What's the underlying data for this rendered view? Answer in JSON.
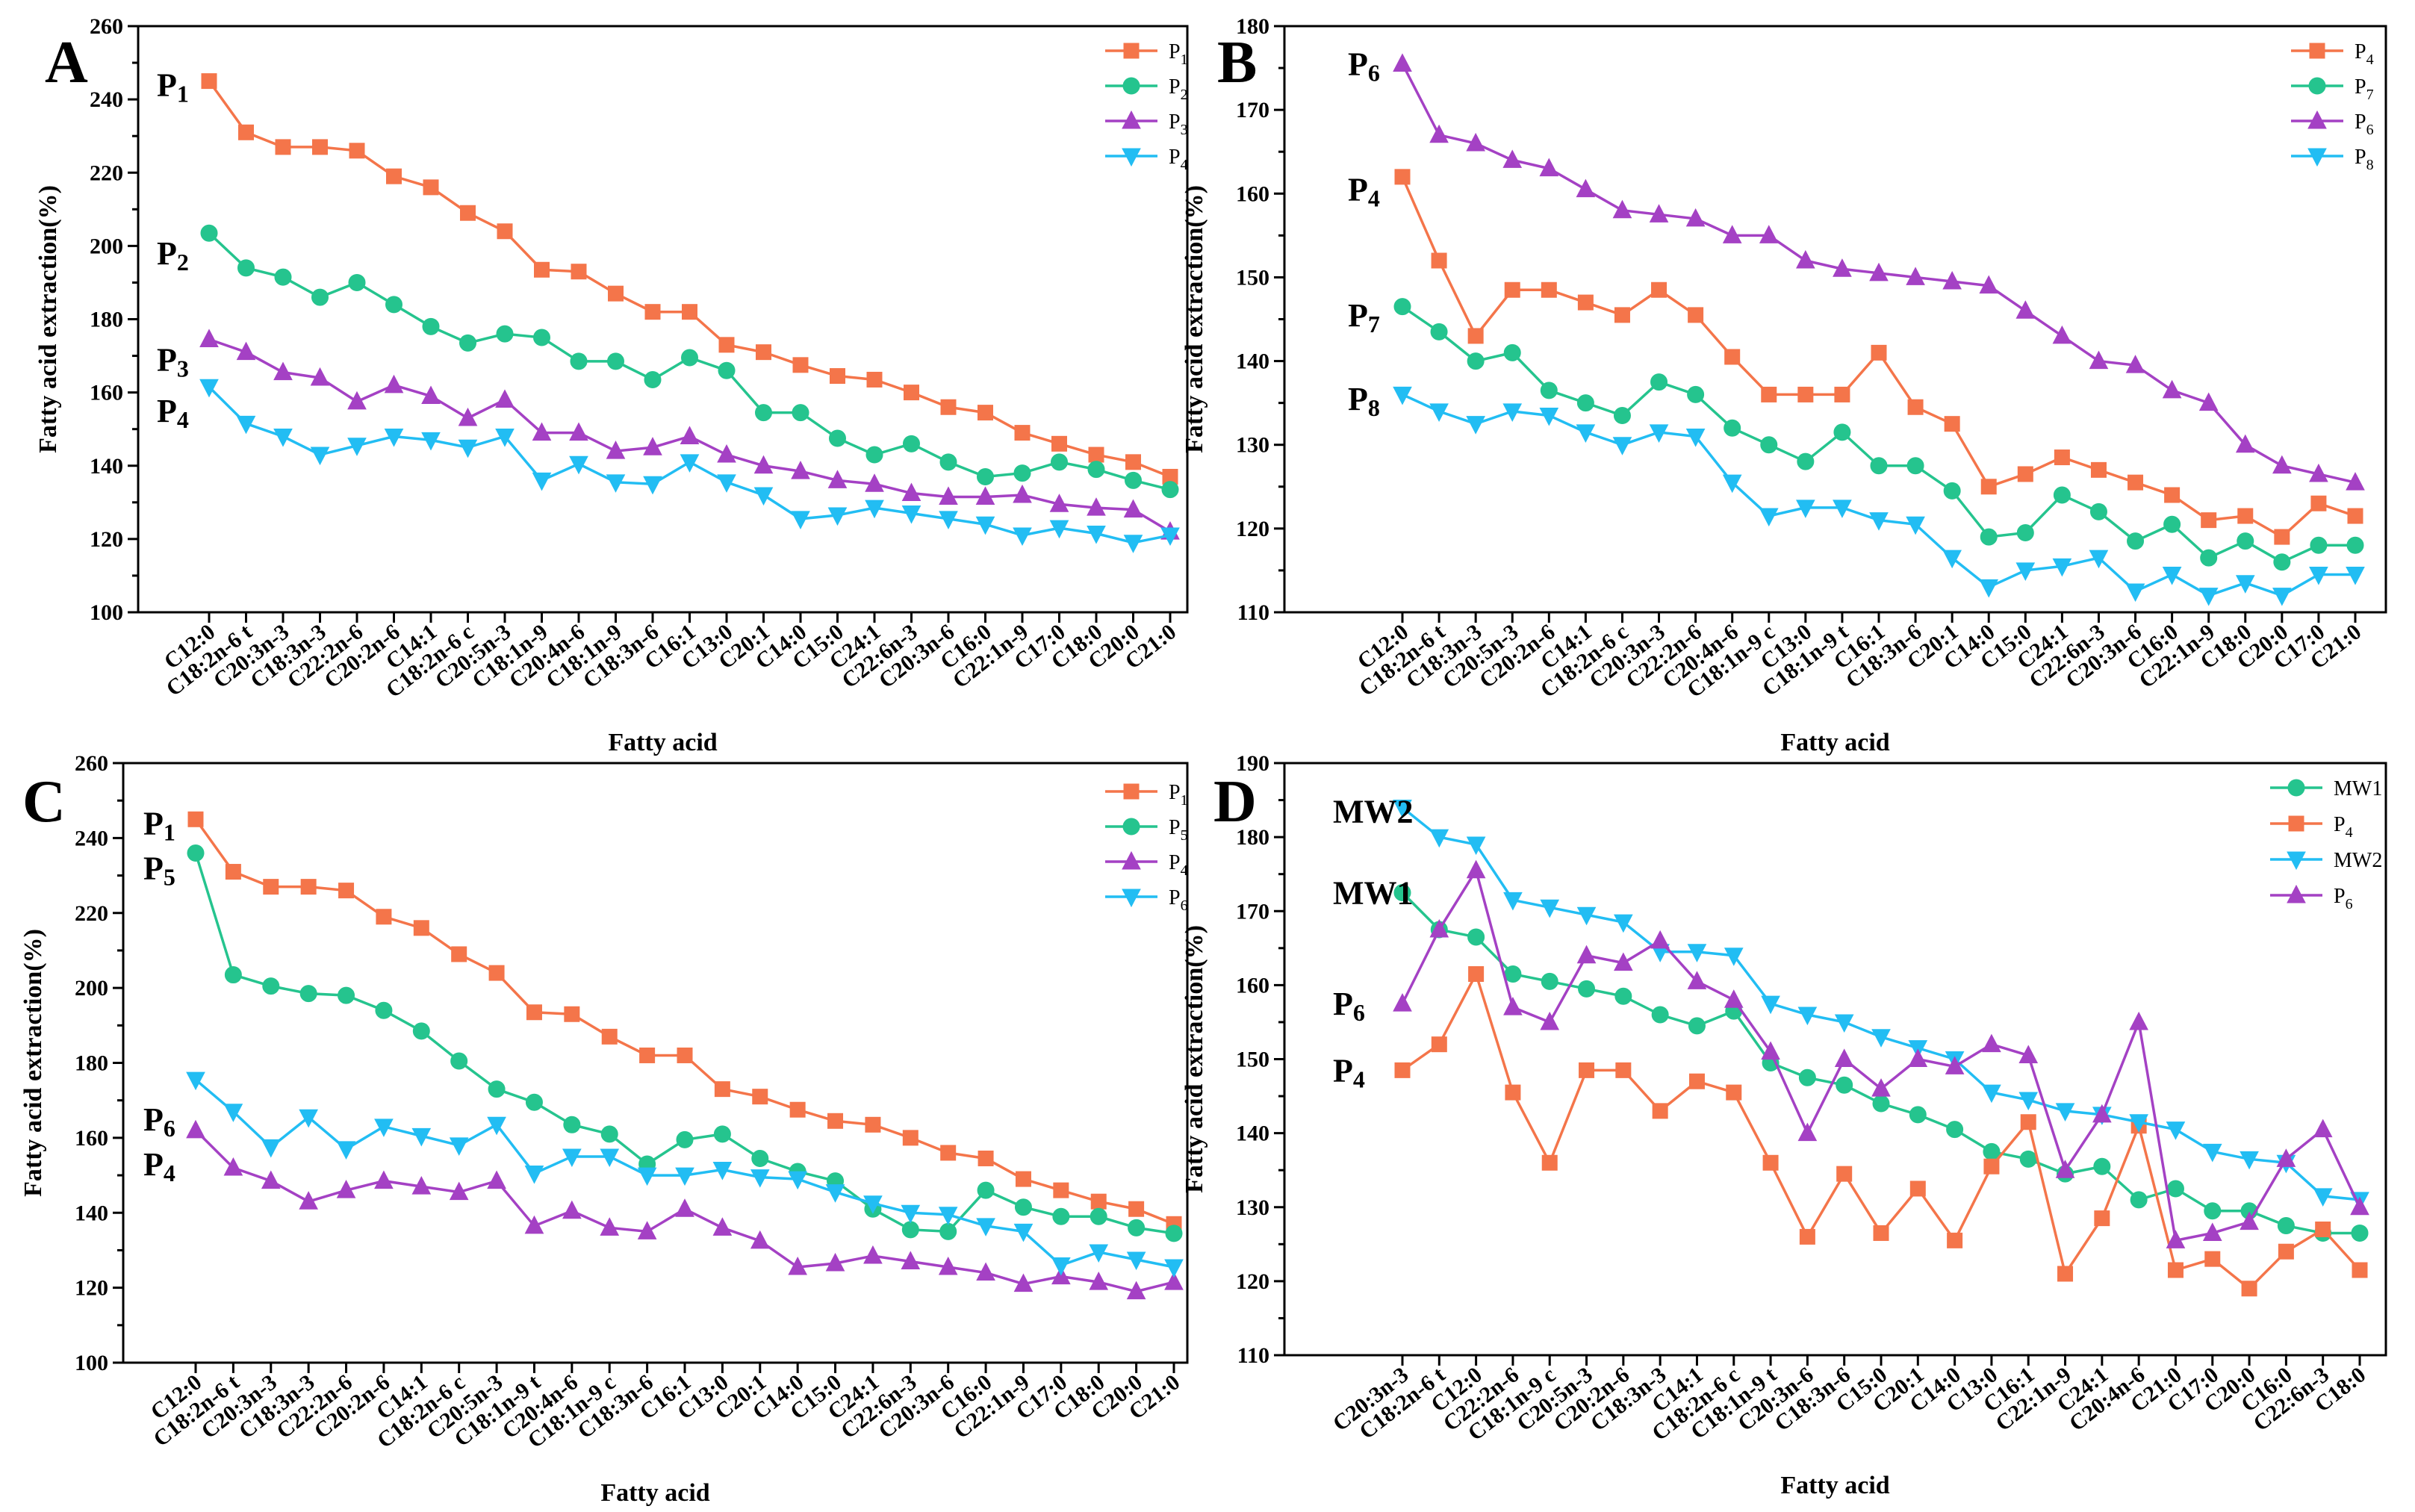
{
  "colors": {
    "orange": "#F4754A",
    "green": "#25C48E",
    "purple": "#A441C4",
    "blue": "#22BDF3"
  },
  "chart_data": [
    {
      "type": "line",
      "panel": "A",
      "xlabel": "Fatty acid",
      "ylabel": "Fatty acid extraction(%)",
      "ylim": [
        100,
        260
      ],
      "yticks": [
        100,
        120,
        140,
        160,
        180,
        200,
        220,
        240,
        260
      ],
      "categories": [
        "C12:0",
        "C18:2n-6 t",
        "C20:3n-3",
        "C18:3n-3",
        "C22:2n-6",
        "C20:2n-6",
        "C14:1",
        "C18:2n-6 c",
        "C20:5n-3",
        "C18:1n-9",
        "C20:4n-6",
        "C18:1n-9",
        "C18:3n-6",
        "C16:1",
        "C13:0",
        "C20:1",
        "C14:0",
        "C15:0",
        "C24:1",
        "C22:6n-3",
        "C20:3n-6",
        "C16:0",
        "C22:1n-9",
        "C17:0",
        "C18:0",
        "C20:0",
        "C21:0"
      ],
      "series": [
        {
          "name": "P",
          "sub": "1",
          "color": "orange",
          "marker": "square",
          "values": [
            245,
            231,
            227,
            227,
            226,
            219,
            216,
            209,
            204,
            193.5,
            193,
            187,
            182,
            182,
            173,
            171,
            167.5,
            164.5,
            163.5,
            160,
            156,
            154.5,
            149,
            146,
            143,
            141,
            137
          ]
        },
        {
          "name": "P",
          "sub": "2",
          "color": "green",
          "marker": "circle",
          "values": [
            203.5,
            194,
            191.5,
            186,
            190,
            184,
            178,
            173.5,
            176,
            175,
            168.5,
            168.5,
            163.5,
            169.5,
            166,
            154.5,
            154.5,
            147.5,
            143,
            146,
            141,
            137,
            138,
            141,
            139,
            136,
            133.5
          ]
        },
        {
          "name": "P",
          "sub": "3",
          "color": "purple",
          "marker": "triangle-up",
          "values": [
            174.5,
            171,
            165.5,
            164,
            157.5,
            162,
            159,
            153,
            158,
            149,
            149,
            144,
            145,
            148,
            143,
            140,
            138.5,
            136,
            135,
            132.5,
            131.5,
            131.5,
            132,
            129.5,
            128.5,
            128,
            122
          ]
        },
        {
          "name": "P",
          "sub": "4",
          "color": "blue",
          "marker": "triangle-down",
          "values": [
            161.5,
            151.5,
            148,
            143,
            145.5,
            148,
            147,
            145,
            148,
            136,
            140.5,
            135.5,
            135,
            141,
            135.5,
            132,
            125.5,
            126.5,
            128.5,
            127,
            125.5,
            124,
            121,
            123,
            121.5,
            119,
            121
          ]
        }
      ],
      "annotations": [
        {
          "name": "P",
          "sub": "1",
          "value": 244
        },
        {
          "name": "P",
          "sub": "2",
          "value": 198
        },
        {
          "name": "P",
          "sub": "3",
          "value": 169
        },
        {
          "name": "P",
          "sub": "4",
          "value": 155
        }
      ]
    },
    {
      "type": "line",
      "panel": "B",
      "xlabel": "Fatty acid",
      "ylabel": "Fatty acid extraction(%)",
      "ylim": [
        110,
        180
      ],
      "yticks": [
        110,
        120,
        130,
        140,
        150,
        160,
        170,
        180
      ],
      "categories": [
        "C12:0",
        "C18:2n-6 t",
        "C18:3n-3",
        "C20:5n-3",
        "C20:2n-6",
        "C14:1",
        "C18:2n-6 c",
        "C20:3n-3",
        "C22:2n-6",
        "C20:4n-6",
        "C18:1n-9 c",
        "C13:0",
        "C18:1n-9 t",
        "C16:1",
        "C18:3n-6",
        "C20:1",
        "C14:0",
        "C15:0",
        "C24:1",
        "C22:6n-3",
        "C20:3n-6",
        "C16:0",
        "C22:1n-9",
        "C18:0",
        "C20:0",
        "C17:0",
        "C21:0"
      ],
      "series": [
        {
          "name": "P",
          "sub": "4",
          "color": "orange",
          "marker": "square",
          "values": [
            162,
            152,
            143,
            148.5,
            148.5,
            147,
            145.5,
            148.5,
            145.5,
            140.5,
            136,
            136,
            136,
            141,
            134.5,
            132.5,
            125,
            126.5,
            128.5,
            127,
            125.5,
            124,
            121,
            121.5,
            119,
            123,
            121.5
          ]
        },
        {
          "name": "P",
          "sub": "7",
          "color": "green",
          "marker": "circle",
          "values": [
            146.5,
            143.5,
            140,
            141,
            136.5,
            135,
            133.5,
            137.5,
            136,
            132,
            130,
            128,
            131.5,
            127.5,
            127.5,
            124.5,
            119,
            119.5,
            124,
            122,
            118.5,
            120.5,
            116.5,
            118.5,
            116,
            118,
            118
          ]
        },
        {
          "name": "P",
          "sub": "6",
          "color": "purple",
          "marker": "triangle-up",
          "values": [
            175.5,
            167,
            166,
            164,
            163,
            160.5,
            158,
            157.5,
            157,
            155,
            155,
            152,
            151,
            150.5,
            150,
            149.5,
            149,
            146,
            143,
            140,
            139.5,
            136.5,
            135,
            130,
            127.5,
            126.5,
            125.5
          ]
        },
        {
          "name": "P",
          "sub": "8",
          "color": "blue",
          "marker": "triangle-down",
          "values": [
            136,
            134,
            132.5,
            134,
            133.5,
            131.5,
            130,
            131.5,
            131,
            125.5,
            121.5,
            122.5,
            122.5,
            121,
            120.5,
            116.5,
            113,
            115,
            115.5,
            116.5,
            112.5,
            114.5,
            112,
            113.5,
            112,
            114.5,
            114.5
          ]
        }
      ],
      "annotations": [
        {
          "name": "P",
          "sub": "6",
          "value": 175.5
        },
        {
          "name": "P",
          "sub": "4",
          "value": 160.5
        },
        {
          "name": "P",
          "sub": "7",
          "value": 145.5
        },
        {
          "name": "P",
          "sub": "8",
          "value": 135.5
        }
      ]
    },
    {
      "type": "line",
      "panel": "C",
      "xlabel": "Fatty acid",
      "ylabel": "Fatty acid extraction(%)",
      "ylim": [
        100,
        260
      ],
      "yticks": [
        100,
        120,
        140,
        160,
        180,
        200,
        220,
        240,
        260
      ],
      "categories": [
        "C12:0",
        "C18:2n-6 t",
        "C20:3n-3",
        "C18:3n-3",
        "C22:2n-6",
        "C20:2n-6",
        "C14:1",
        "C18:2n-6 c",
        "C20:5n-3",
        "C18:1n-9 t",
        "C20:4n-6",
        "C18:1n-9 c",
        "C18:3n-6",
        "C16:1",
        "C13:0",
        "C20:1",
        "C14:0",
        "C15:0",
        "C24:1",
        "C22:6n-3",
        "C20:3n-6",
        "C16:0",
        "C22:1n-9",
        "C17:0",
        "C18:0",
        "C20:0",
        "C21:0"
      ],
      "series": [
        {
          "name": "P",
          "sub": "1",
          "color": "orange",
          "marker": "square",
          "values": [
            245,
            231,
            227,
            227,
            226,
            219,
            216,
            209,
            204,
            193.5,
            193,
            187,
            182,
            182,
            173,
            171,
            167.5,
            164.5,
            163.5,
            160,
            156,
            154.5,
            149,
            146,
            143,
            141,
            137
          ]
        },
        {
          "name": "P",
          "sub": "5",
          "color": "green",
          "marker": "circle",
          "values": [
            236,
            203.5,
            200.5,
            198.5,
            198,
            194,
            188.5,
            180.5,
            173,
            169.5,
            163.5,
            161,
            153,
            159.5,
            161,
            154.5,
            151,
            148.5,
            141,
            135.5,
            135,
            146,
            141.5,
            139,
            139,
            136,
            134.5
          ]
        },
        {
          "name": "P",
          "sub": "4",
          "color": "purple",
          "marker": "triangle-up",
          "values": [
            162,
            152,
            148.5,
            143,
            146,
            148.5,
            147,
            145.5,
            148.5,
            136.5,
            140.5,
            136,
            135,
            141,
            136,
            132.5,
            125.5,
            126.5,
            128.5,
            127,
            125.5,
            124,
            121,
            123,
            121.5,
            119,
            121.5
          ]
        },
        {
          "name": "P",
          "sub": "6",
          "color": "blue",
          "marker": "triangle-down",
          "values": [
            175.5,
            167,
            157.5,
            165.5,
            157,
            163,
            160.5,
            158,
            163.5,
            150.5,
            155,
            155,
            150,
            150,
            151.5,
            149.5,
            149,
            145.5,
            142.5,
            140,
            139.5,
            136.5,
            135,
            126,
            129.5,
            127.5,
            125.5
          ]
        }
      ],
      "annotations": [
        {
          "name": "P",
          "sub": "1",
          "value": 244
        },
        {
          "name": "P",
          "sub": "5",
          "value": 232
        },
        {
          "name": "P",
          "sub": "6",
          "value": 165
        },
        {
          "name": "P",
          "sub": "4",
          "value": 153
        }
      ]
    },
    {
      "type": "line",
      "panel": "D",
      "xlabel": "Fatty acid",
      "ylabel": "Fatty acid extraction(%)",
      "ylim": [
        110,
        190
      ],
      "yticks": [
        110,
        120,
        130,
        140,
        150,
        160,
        170,
        180,
        190
      ],
      "categories": [
        "C20:3n-3",
        "C18:2n-6 t",
        "C12:0",
        "C22:2n-6",
        "C18:1n-9 c",
        "C20:5n-3",
        "C20:2n-6",
        "C18:3n-3",
        "C14:1",
        "C18:2n-6 c",
        "C18:1n-9 t",
        "C20:3n-6",
        "C18:3n-6",
        "C15:0",
        "C20:1",
        "C14:0",
        "C13:0",
        "C16:1",
        "C22:1n-9",
        "C24:1",
        "C20:4n-6",
        "C21:0",
        "C17:0",
        "C20:0",
        "C16:0",
        "C22:6n-3",
        "C18:0"
      ],
      "series": [
        {
          "name": "MW1",
          "sub": "",
          "color": "green",
          "marker": "circle",
          "values": [
            172.5,
            167.5,
            166.5,
            161.5,
            160.5,
            159.5,
            158.5,
            156,
            154.5,
            156.5,
            149.5,
            147.5,
            146.5,
            144,
            142.5,
            140.5,
            137.5,
            136.5,
            134.5,
            135.5,
            131,
            132.5,
            129.5,
            129.5,
            127.5,
            126.5,
            126.5
          ]
        },
        {
          "name": "P",
          "sub": "4",
          "color": "orange",
          "marker": "square",
          "values": [
            148.5,
            152,
            161.5,
            145.5,
            136,
            148.5,
            148.5,
            143,
            147,
            145.5,
            136,
            126,
            134.5,
            126.5,
            132.5,
            125.5,
            135.5,
            141.5,
            121,
            128.5,
            141,
            121.5,
            123,
            119,
            124,
            127,
            121.5
          ]
        },
        {
          "name": "MW2",
          "sub": "",
          "color": "blue",
          "marker": "triangle-down",
          "values": [
            184,
            180,
            179,
            171.5,
            170.5,
            169.5,
            168.5,
            164.5,
            164.5,
            164,
            157.5,
            156,
            155,
            153,
            151.5,
            150,
            145.5,
            144.5,
            143,
            142.5,
            141.5,
            140.5,
            137.5,
            136.5,
            136,
            131.5,
            131
          ]
        },
        {
          "name": "P",
          "sub": "6",
          "color": "purple",
          "marker": "triangle-up",
          "values": [
            157.5,
            167.5,
            175.5,
            157,
            155,
            164,
            163,
            166,
            160.5,
            158,
            151,
            140,
            150,
            146,
            150,
            149,
            152,
            150.5,
            135,
            142.5,
            155,
            125.5,
            126.5,
            128,
            136.5,
            140.5,
            130
          ]
        }
      ],
      "annotations": [
        {
          "name": "MW2",
          "sub": "",
          "value": 183.5
        },
        {
          "name": "MW1",
          "sub": "",
          "value": 172.5
        },
        {
          "name": "P",
          "sub": "6",
          "value": 157.5
        },
        {
          "name": "P",
          "sub": "4",
          "value": 148.5
        }
      ]
    }
  ]
}
